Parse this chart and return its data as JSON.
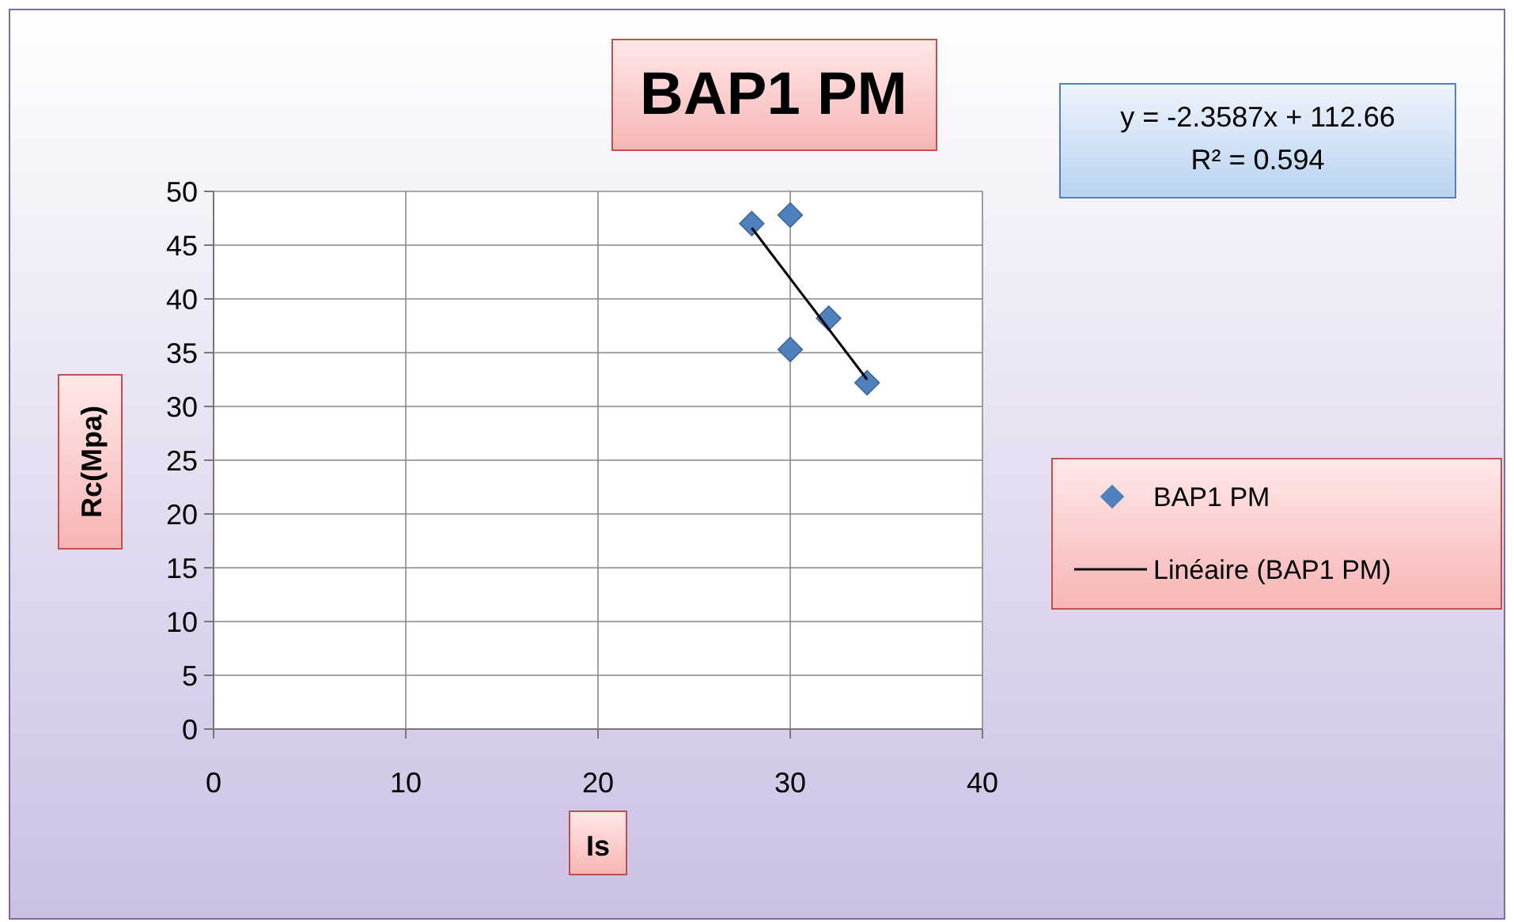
{
  "chart_data": {
    "type": "scatter",
    "title": "BAP1 PM",
    "xlabel": "Is",
    "ylabel": "Rc(Mpa)",
    "annotations": [
      "y = -2.3587x + 112.66",
      "R² = 0.594"
    ],
    "series": [
      {
        "name": "BAP1 PM",
        "color": "#4f81bd",
        "marker": "diamond",
        "x": [
          28,
          30,
          30,
          32,
          34
        ],
        "values": [
          47,
          47.8,
          35.3,
          38.2,
          32.2
        ]
      },
      {
        "name": "Linéaire (BAP1 PM)",
        "type": "line",
        "color": "#000000",
        "line_style": "solid",
        "x": [
          28,
          34
        ],
        "values": [
          46.6,
          32.5
        ]
      }
    ],
    "xlim": [
      0,
      40
    ],
    "xticks": [
      0,
      10,
      20,
      30,
      40
    ],
    "ylim": [
      0,
      50
    ],
    "yticks": [
      0,
      5,
      10,
      15,
      20,
      25,
      30,
      35,
      40,
      45,
      50
    ],
    "grid": true,
    "legend": "right"
  }
}
